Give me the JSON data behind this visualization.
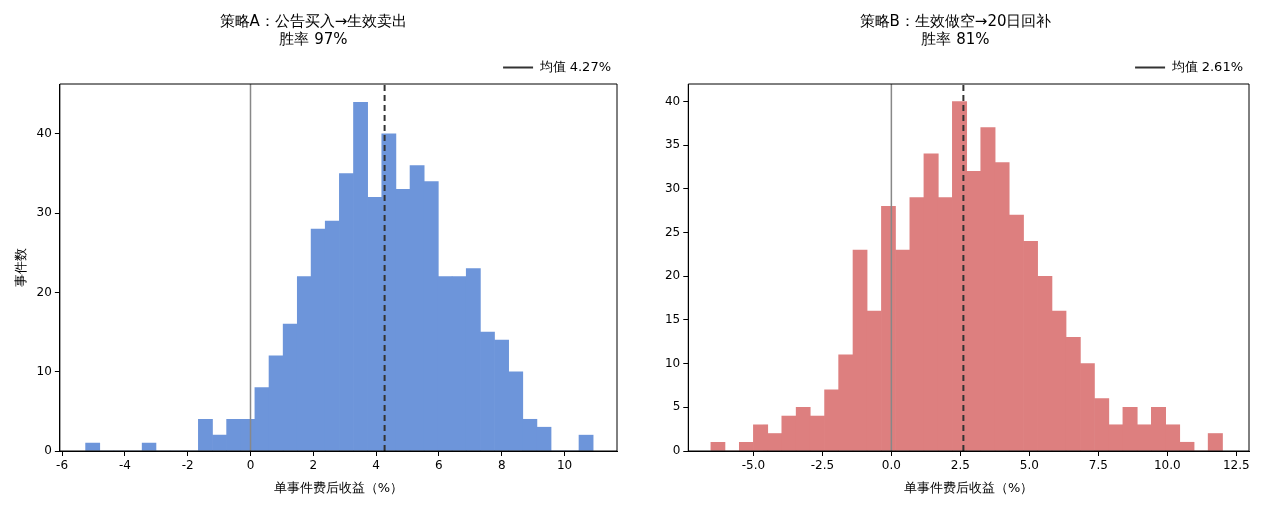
{
  "chart_data": [
    {
      "type": "histogram",
      "title": "策略A：公告买入→生效卖出",
      "subtitle": "胜率 97%",
      "xlabel": "单事件费后收益（%）",
      "ylabel": "事件数",
      "color": "#6d95da",
      "bins": [
        -5.25,
        -4.8,
        -4.35,
        -3.9,
        -3.45,
        -3.01,
        -2.56,
        -2.11,
        -1.66,
        -1.21,
        -0.76,
        -0.31,
        0.14,
        0.59,
        1.04,
        1.49,
        1.93,
        2.38,
        2.83,
        3.28,
        3.73,
        4.18,
        4.63,
        5.08,
        5.53,
        5.98,
        6.42,
        6.87,
        7.32,
        7.77,
        8.22,
        8.67,
        9.12,
        9.57,
        10.02,
        10.46,
        10.91
      ],
      "values": [
        1,
        0,
        0,
        0,
        1,
        0,
        0,
        0,
        4,
        2,
        4,
        4,
        8,
        12,
        16,
        22,
        28,
        29,
        35,
        44,
        32,
        40,
        33,
        36,
        34,
        22,
        22,
        23,
        15,
        14,
        10,
        4,
        3,
        0,
        0,
        2
      ],
      "xlim": [
        -6.07,
        11.67
      ],
      "ylim": [
        0,
        46.3
      ],
      "xticks": [
        -6,
        -4,
        -2,
        0,
        2,
        4,
        6,
        8,
        10
      ],
      "yticks": [
        0,
        10,
        20,
        30,
        40
      ],
      "ref_lines": [
        {
          "axis": "x",
          "value": 0,
          "color": "#888888",
          "line_style": "solid"
        },
        {
          "axis": "x",
          "value": 4.27,
          "label": "均值 4.27%",
          "color": "#333333",
          "line_style": "dashed"
        }
      ],
      "grid": false,
      "legend": "top right"
    },
    {
      "type": "histogram",
      "title": "策略B：生效做空→20日回补",
      "subtitle": "胜率 81%",
      "xlabel": "单事件费后收益（%）",
      "color": "#dd7f7f",
      "bins": [
        -6.54,
        -6.03,
        -5.51,
        -5.0,
        -4.48,
        -3.97,
        -3.45,
        -2.94,
        -2.42,
        -1.91,
        -1.39,
        -0.88,
        -0.36,
        0.15,
        0.67,
        1.18,
        1.7,
        2.21,
        2.73,
        3.24,
        3.76,
        4.27,
        4.79,
        5.3,
        5.82,
        6.33,
        6.85,
        7.36,
        7.88,
        8.39,
        8.91,
        9.42,
        9.94,
        10.45,
        10.97,
        11.48,
        12.0
      ],
      "values": [
        1,
        0,
        1,
        3,
        2,
        4,
        5,
        4,
        7,
        11,
        23,
        16,
        28,
        23,
        29,
        34,
        29,
        40,
        32,
        37,
        33,
        27,
        24,
        20,
        16,
        13,
        10,
        6,
        3,
        5,
        3,
        5,
        3,
        1,
        0,
        2
      ],
      "xlim": [
        -7.36,
        12.96
      ],
      "ylim": [
        0,
        42
      ],
      "xticks": [
        {
          "value": -5,
          "label": "-5.0"
        },
        {
          "value": -2.5,
          "label": "-2.5"
        },
        {
          "value": 0,
          "label": "0.0"
        },
        {
          "value": 2.5,
          "label": "2.5"
        },
        {
          "value": 5,
          "label": "5.0"
        },
        {
          "value": 7.5,
          "label": "7.5"
        },
        {
          "value": 10,
          "label": "10.0"
        },
        {
          "value": 12.5,
          "label": "12.5"
        }
      ],
      "yticks": [
        0,
        5,
        10,
        15,
        20,
        25,
        30,
        35,
        40
      ],
      "ref_lines": [
        {
          "axis": "x",
          "value": 0,
          "color": "#888888",
          "line_style": "solid"
        },
        {
          "axis": "x",
          "value": 2.61,
          "label": "均值 2.61%",
          "color": "#333333",
          "line_style": "dashed"
        }
      ],
      "grid": false,
      "legend": "top right"
    }
  ]
}
